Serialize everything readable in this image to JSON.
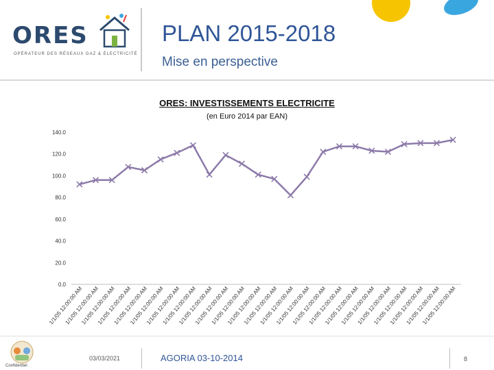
{
  "header": {
    "logo_text": "ORES",
    "logo_subtext": "OPÉRATEUR DES RÉSEAUX GAZ & ÉLECTRICITÉ",
    "title": "PLAN 2015-2018",
    "subtitle": "Mise en perspective"
  },
  "footer": {
    "date": "03/03/2021",
    "center": "AGORIA 03-10-2014",
    "page": "8",
    "logo_label": "Confidentiel"
  },
  "colors": {
    "line": "#8c7aa9",
    "title_blue": "#2f5597",
    "deco_yellow": "#f6c400",
    "deco_blue": "#3aa6e0"
  },
  "chart_data": {
    "type": "line",
    "title": "ORES: INVESTISSEMENTS ELECTRICITE",
    "subtitle": "(en Euro 2014 par EAN)",
    "ylim": [
      0,
      140
    ],
    "yticks": [
      "0.0",
      "20.0",
      "40.0",
      "60.0",
      "80.0",
      "100.0",
      "120.0",
      "140.0"
    ],
    "x_tick_label": "1/1/05 12:00:00 AM",
    "series": [
      {
        "values": [
          92,
          96,
          96,
          108,
          105,
          115,
          121,
          128,
          101,
          119,
          111,
          101,
          97,
          82,
          99,
          122,
          127,
          127,
          123,
          122,
          129,
          130,
          130,
          133
        ]
      }
    ]
  }
}
